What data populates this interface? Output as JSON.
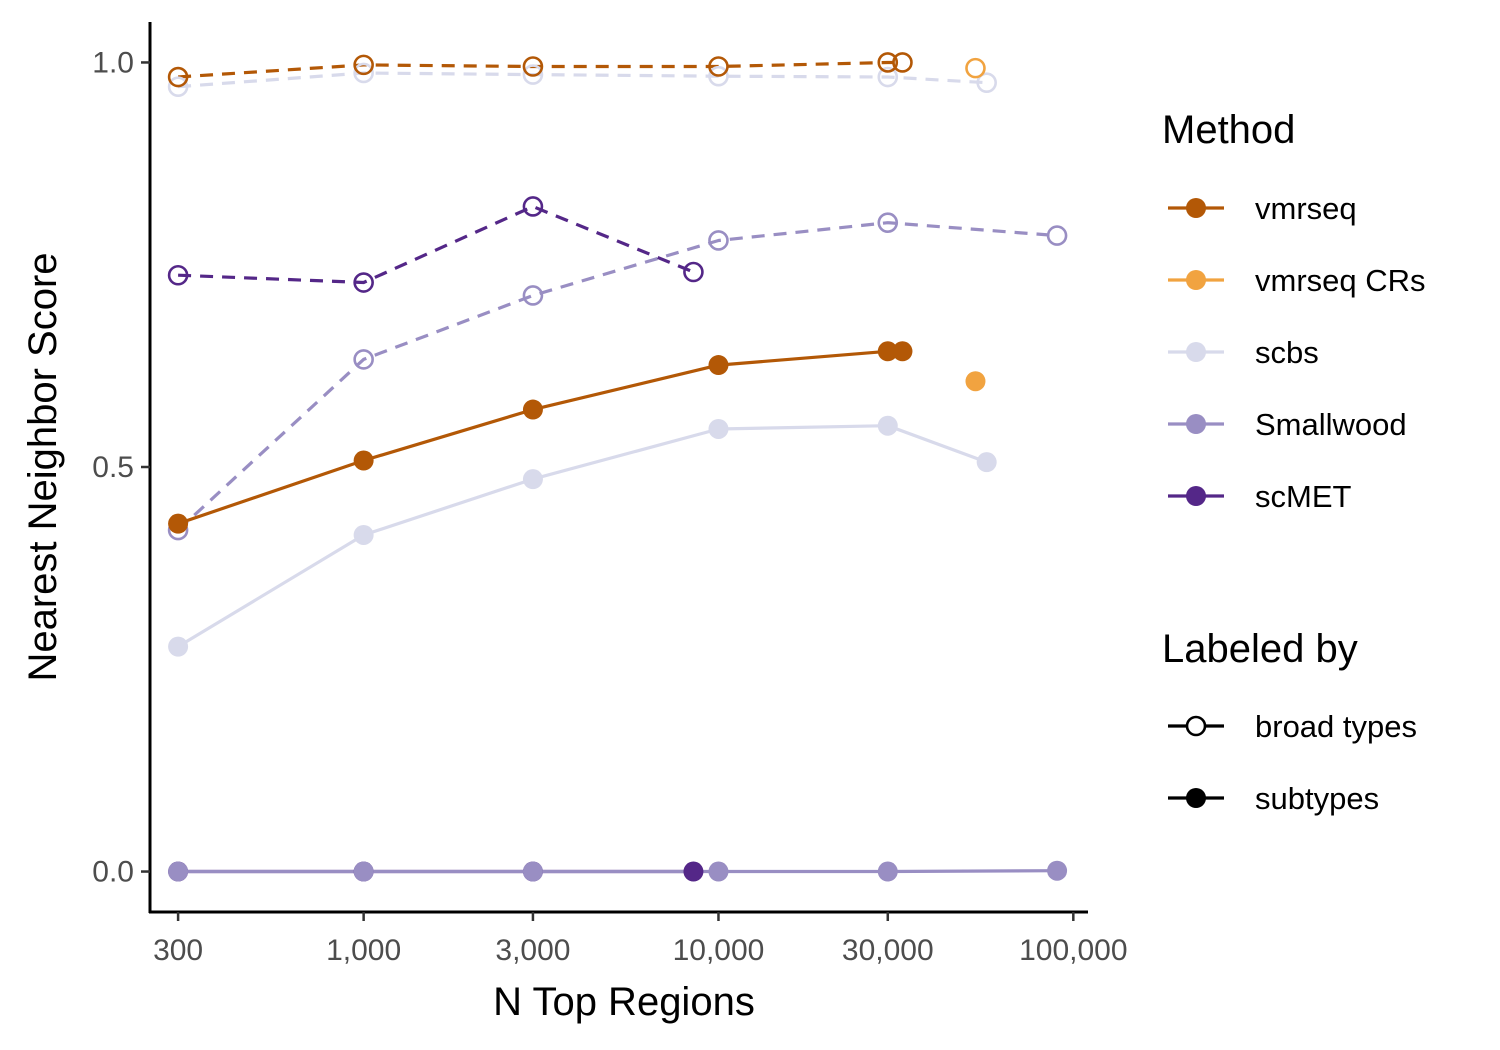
{
  "chart_data": {
    "type": "line",
    "xlabel": "N Top Regions",
    "ylabel": "Nearest Neighbor Score",
    "x_scale": "log10",
    "x_ticks": [
      300,
      1000,
      3000,
      10000,
      30000,
      100000
    ],
    "x_tick_labels": [
      "300",
      "1,000",
      "3,000",
      "10,000",
      "30,000",
      "100,000"
    ],
    "y_ticks": [
      0,
      0.5,
      1
    ],
    "y_tick_labels": [
      "0.0",
      "0.5",
      "1.0"
    ],
    "xlim": [
      250,
      110000
    ],
    "ylim": [
      -0.05,
      1.05
    ],
    "grid": false,
    "legend_position": "right",
    "legend": {
      "method_title": "Method",
      "methods": [
        {
          "name": "vmrseq",
          "color": "#b35806"
        },
        {
          "name": "vmrseq CRs",
          "color": "#f1a340"
        },
        {
          "name": "scbs",
          "color": "#d8daeb"
        },
        {
          "name": "Smallwood",
          "color": "#998ec3"
        },
        {
          "name": "scMET",
          "color": "#542788"
        }
      ],
      "label_title": "Labeled by",
      "labels": [
        {
          "name": "broad types",
          "shape": "open-circle",
          "line": "dashed"
        },
        {
          "name": "subtypes",
          "shape": "filled-circle",
          "line": "solid"
        }
      ]
    },
    "series": [
      {
        "method": "vmrseq",
        "labeled_by": "broad types",
        "x": [
          300,
          1000,
          3000,
          10000,
          30000,
          33000
        ],
        "y": [
          0.982,
          0.997,
          0.995,
          0.995,
          1.0,
          1.0
        ]
      },
      {
        "method": "vmrseq",
        "labeled_by": "subtypes",
        "x": [
          300,
          1000,
          3000,
          10000,
          30000,
          33000
        ],
        "y": [
          0.43,
          0.508,
          0.571,
          0.626,
          0.643,
          0.643
        ]
      },
      {
        "method": "vmrseq CRs",
        "labeled_by": "broad types",
        "x": [
          53000
        ],
        "y": [
          0.993
        ]
      },
      {
        "method": "vmrseq CRs",
        "labeled_by": "subtypes",
        "x": [
          53000
        ],
        "y": [
          0.606
        ]
      },
      {
        "method": "scbs",
        "labeled_by": "broad types",
        "x": [
          300,
          1000,
          3000,
          10000,
          30000,
          57000
        ],
        "y": [
          0.97,
          0.987,
          0.985,
          0.983,
          0.982,
          0.975
        ]
      },
      {
        "method": "scbs",
        "labeled_by": "subtypes",
        "x": [
          300,
          1000,
          3000,
          10000,
          30000,
          57000
        ],
        "y": [
          0.278,
          0.416,
          0.485,
          0.547,
          0.551,
          0.506
        ]
      },
      {
        "method": "Smallwood",
        "labeled_by": "broad types",
        "x": [
          300,
          1000,
          3000,
          10000,
          30000,
          90000
        ],
        "y": [
          0.422,
          0.633,
          0.712,
          0.78,
          0.802,
          0.786
        ]
      },
      {
        "method": "Smallwood",
        "labeled_by": "subtypes",
        "x": [
          300,
          1000,
          3000,
          10000,
          30000,
          90000
        ],
        "y": [
          0.0,
          0.0,
          0.0,
          0.0,
          0.0,
          0.001
        ]
      },
      {
        "method": "scMET",
        "labeled_by": "broad types",
        "x": [
          300,
          1000,
          3000,
          8500
        ],
        "y": [
          0.737,
          0.728,
          0.822,
          0.741
        ]
      },
      {
        "method": "scMET",
        "labeled_by": "subtypes",
        "x": [
          300,
          1000,
          3000,
          8500
        ],
        "y": [
          0.0,
          0.0,
          0.0,
          0.0
        ]
      }
    ]
  }
}
